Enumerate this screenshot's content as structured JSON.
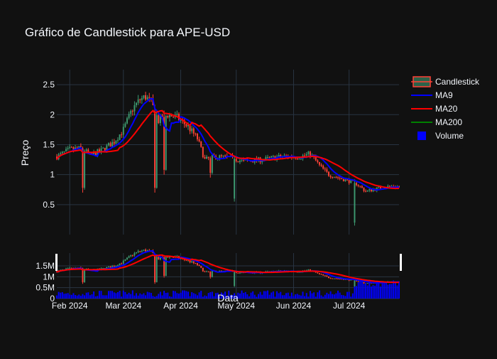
{
  "chart_data": {
    "type": "candlestick",
    "title": "Gráfico de Candlestick para APE-USD",
    "xlabel": "Data",
    "ylabel": "Preço",
    "x_ticks": [
      "Feb 2024",
      "Mar 2024",
      "Apr 2024",
      "May 2024",
      "Jun 2024",
      "Jul 2024"
    ],
    "y_ticks": [
      "0.5",
      "1",
      "1.5",
      "2",
      "2.5"
    ],
    "volume_ticks": [
      "0",
      "0.5M",
      "1M",
      "1.5M"
    ],
    "ylim": [
      0.0,
      2.75
    ],
    "grid": true,
    "legend_position": "top-right",
    "legend": [
      {
        "name": "Candlestick",
        "color": "#3d9970",
        "symbol": "candle"
      },
      {
        "name": "MA9",
        "color": "#0000ff",
        "symbol": "line"
      },
      {
        "name": "MA20",
        "color": "#ff0000",
        "symbol": "line"
      },
      {
        "name": "MA200",
        "color": "#008000",
        "symbol": "line"
      },
      {
        "name": "Volume",
        "color": "#0000ff",
        "symbol": "square"
      }
    ],
    "colors": {
      "up": "#3d9970",
      "down": "#ff4136",
      "ma9": "#0000ff",
      "ma20": "#ff0000",
      "ma200": "#008000",
      "volume": "#0000ff",
      "background": "#111111",
      "grid": "#283442"
    },
    "close_anchors": [
      {
        "date": "2024-01-25",
        "value": 1.3
      },
      {
        "date": "2024-02-01",
        "value": 1.42
      },
      {
        "date": "2024-02-08",
        "value": 1.44
      },
      {
        "date": "2024-02-12",
        "value": 1.32
      },
      {
        "date": "2024-02-18",
        "value": 1.4
      },
      {
        "date": "2024-02-25",
        "value": 1.55
      },
      {
        "date": "2024-03-01",
        "value": 1.75
      },
      {
        "date": "2024-03-06",
        "value": 2.1
      },
      {
        "date": "2024-03-10",
        "value": 2.25
      },
      {
        "date": "2024-03-13",
        "value": 2.3
      },
      {
        "date": "2024-03-16",
        "value": 2.2
      },
      {
        "date": "2024-03-20",
        "value": 1.9
      },
      {
        "date": "2024-03-25",
        "value": 2.0
      },
      {
        "date": "2024-03-30",
        "value": 1.95
      },
      {
        "date": "2024-04-05",
        "value": 1.8
      },
      {
        "date": "2024-04-10",
        "value": 1.6
      },
      {
        "date": "2024-04-14",
        "value": 1.25
      },
      {
        "date": "2024-04-20",
        "value": 1.3
      },
      {
        "date": "2024-04-28",
        "value": 1.28
      },
      {
        "date": "2024-05-05",
        "value": 1.22
      },
      {
        "date": "2024-05-15",
        "value": 1.25
      },
      {
        "date": "2024-05-25",
        "value": 1.3
      },
      {
        "date": "2024-06-05",
        "value": 1.3
      },
      {
        "date": "2024-06-10",
        "value": 1.35
      },
      {
        "date": "2024-06-15",
        "value": 1.15
      },
      {
        "date": "2024-06-20",
        "value": 1.0
      },
      {
        "date": "2024-06-28",
        "value": 0.92
      },
      {
        "date": "2024-07-05",
        "value": 0.85
      },
      {
        "date": "2024-07-10",
        "value": 0.72
      },
      {
        "date": "2024-07-20",
        "value": 0.8
      },
      {
        "date": "2024-07-28",
        "value": 0.8
      }
    ],
    "spikes": [
      {
        "date": "2024-02-08",
        "low": 0.7
      },
      {
        "date": "2024-03-18",
        "low": 0.7
      },
      {
        "date": "2024-03-23",
        "low": 1.0
      },
      {
        "date": "2024-04-17",
        "low": 0.95
      },
      {
        "date": "2024-04-30",
        "low": 0.55
      },
      {
        "date": "2024-07-04",
        "low": 0.15
      }
    ],
    "date_range": [
      "2024-01-25",
      "2024-07-28"
    ]
  }
}
